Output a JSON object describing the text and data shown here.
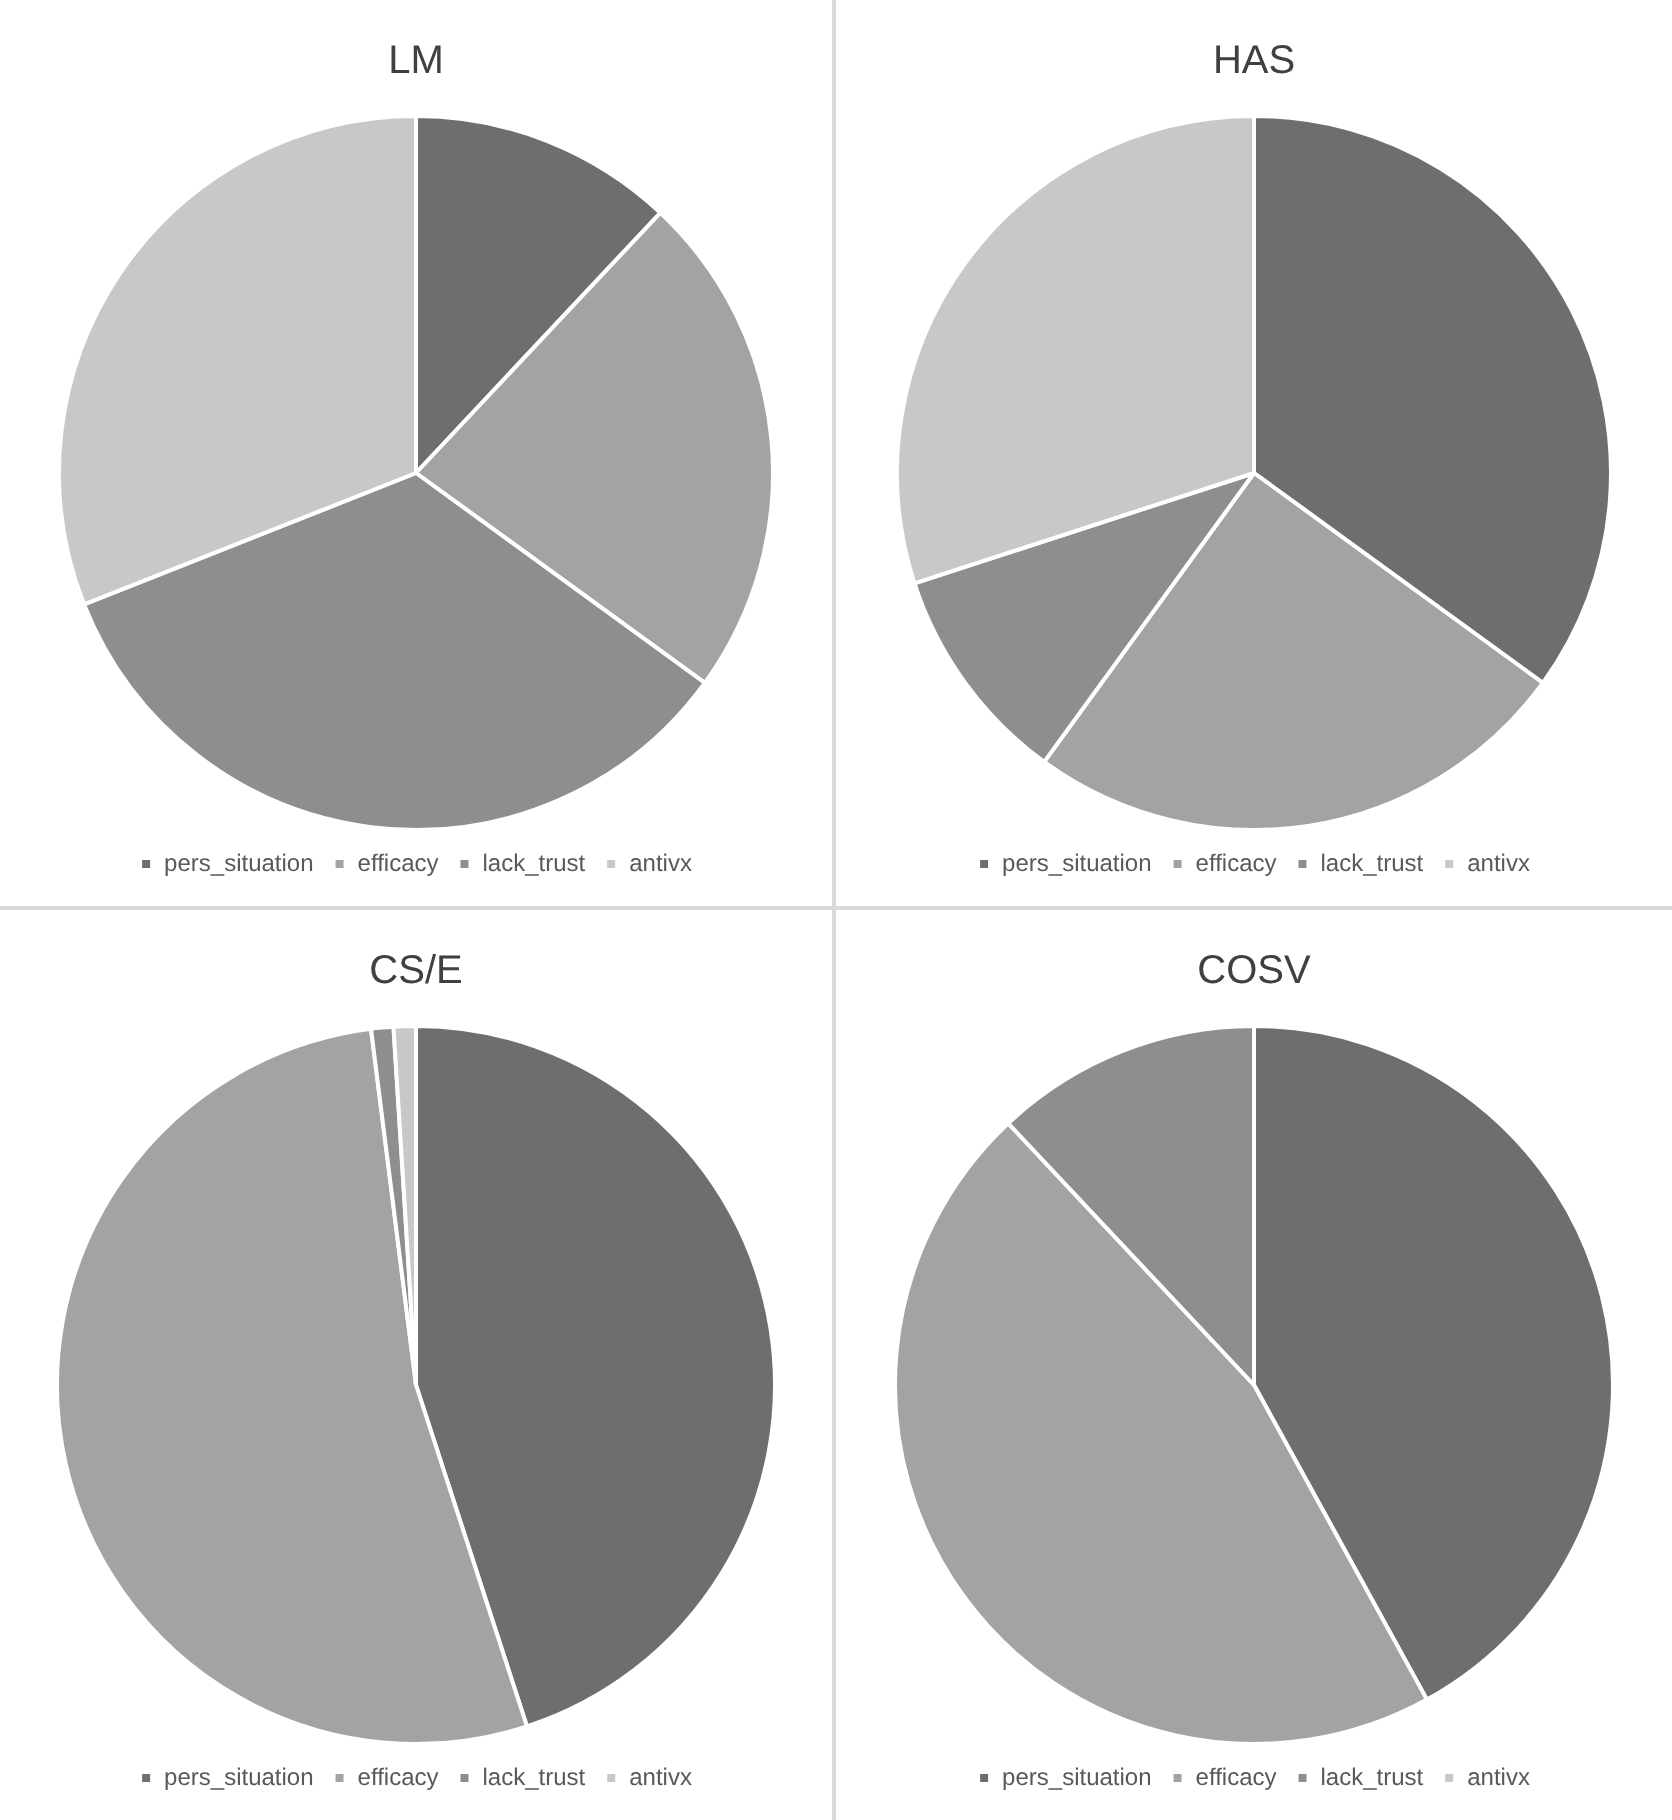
{
  "chart_data": [
    {
      "type": "pie",
      "title": "LM",
      "categories": [
        "pers_situation",
        "efficacy",
        "lack_trust",
        "antivx"
      ],
      "values": [
        12,
        23,
        34,
        31
      ],
      "colors": [
        "#6e6e6e",
        "#a3a3a3",
        "#8e8e8e",
        "#c8c8c8"
      ],
      "legend": "bottom"
    },
    {
      "type": "pie",
      "title": "HAS",
      "categories": [
        "pers_situation",
        "efficacy",
        "lack_trust",
        "antivx"
      ],
      "values": [
        35,
        25,
        10,
        30
      ],
      "colors": [
        "#6e6e6e",
        "#a3a3a3",
        "#8e8e8e",
        "#c8c8c8"
      ],
      "legend": "bottom"
    },
    {
      "type": "pie",
      "title": "CS/E",
      "categories": [
        "pers_situation",
        "efficacy",
        "lack_trust",
        "antivx"
      ],
      "values": [
        45,
        53,
        1,
        1
      ],
      "colors": [
        "#6e6e6e",
        "#a3a3a3",
        "#8e8e8e",
        "#c8c8c8"
      ],
      "legend": "bottom"
    },
    {
      "type": "pie",
      "title": "COSV",
      "categories": [
        "pers_situation",
        "efficacy",
        "lack_trust",
        "antivx"
      ],
      "values": [
        42,
        46,
        12,
        0
      ],
      "colors": [
        "#6e6e6e",
        "#a3a3a3",
        "#8e8e8e",
        "#c8c8c8"
      ],
      "legend": "bottom"
    }
  ]
}
